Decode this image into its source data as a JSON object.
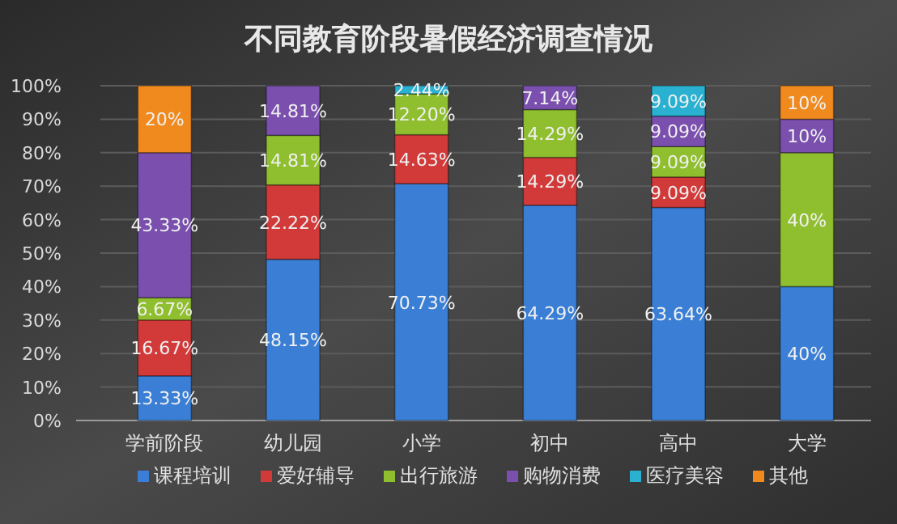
{
  "chart_data": {
    "type": "bar",
    "stacked": true,
    "title": "不同教育阶段暑假经济调查情况",
    "categories": [
      "学前阶段",
      "幼儿园",
      "小学",
      "初中",
      "高中",
      "大学"
    ],
    "series": [
      {
        "name": "课程培训",
        "color": "#3a7fd5",
        "values": [
          13.33,
          48.15,
          70.73,
          64.29,
          63.64,
          40
        ],
        "value_labels": [
          "13.33%",
          "48.15%",
          "70.73%",
          "64.29%",
          "63.64%",
          "40%"
        ]
      },
      {
        "name": "爱好辅导",
        "color": "#d23a3a",
        "values": [
          16.67,
          22.22,
          14.63,
          14.29,
          9.09,
          null
        ],
        "value_labels": [
          "16.67%",
          "22.22%",
          "14.63%",
          "14.29%",
          "9.09%",
          null
        ]
      },
      {
        "name": "出行旅游",
        "color": "#8fbf2e",
        "values": [
          6.67,
          14.81,
          12.2,
          14.29,
          9.09,
          40
        ],
        "value_labels": [
          "6.67%",
          "14.81%",
          "12.20%",
          "14.29%",
          "9.09%",
          "40%"
        ]
      },
      {
        "name": "购物消费",
        "color": "#7a4fae",
        "values": [
          43.33,
          14.81,
          null,
          7.14,
          9.09,
          10
        ],
        "value_labels": [
          "43.33%",
          "14.81%",
          null,
          "7.14%",
          "9.09%",
          "10%"
        ]
      },
      {
        "name": "医疗美容",
        "color": "#2ab0d0",
        "values": [
          null,
          null,
          2.44,
          null,
          9.09,
          null
        ],
        "value_labels": [
          null,
          null,
          "2.44%",
          null,
          "9.09%",
          null
        ]
      },
      {
        "name": "其他",
        "color": "#f08a1e",
        "values": [
          20,
          null,
          null,
          null,
          null,
          10
        ],
        "value_labels": [
          "20%",
          null,
          null,
          null,
          null,
          "10%"
        ]
      }
    ],
    "ylim": [
      0,
      100
    ],
    "yticks": [
      {
        "value": 0,
        "label": "0%"
      },
      {
        "value": 10,
        "label": "10%"
      },
      {
        "value": 20,
        "label": "20%"
      },
      {
        "value": 30,
        "label": "30%"
      },
      {
        "value": 40,
        "label": "40%"
      },
      {
        "value": 50,
        "label": "50%"
      },
      {
        "value": 60,
        "label": "60%"
      },
      {
        "value": 70,
        "label": "70%"
      },
      {
        "value": 80,
        "label": "80%"
      },
      {
        "value": 90,
        "label": "90%"
      },
      {
        "value": 100,
        "label": "100%"
      }
    ],
    "grid": "y",
    "legend": "bottom"
  }
}
